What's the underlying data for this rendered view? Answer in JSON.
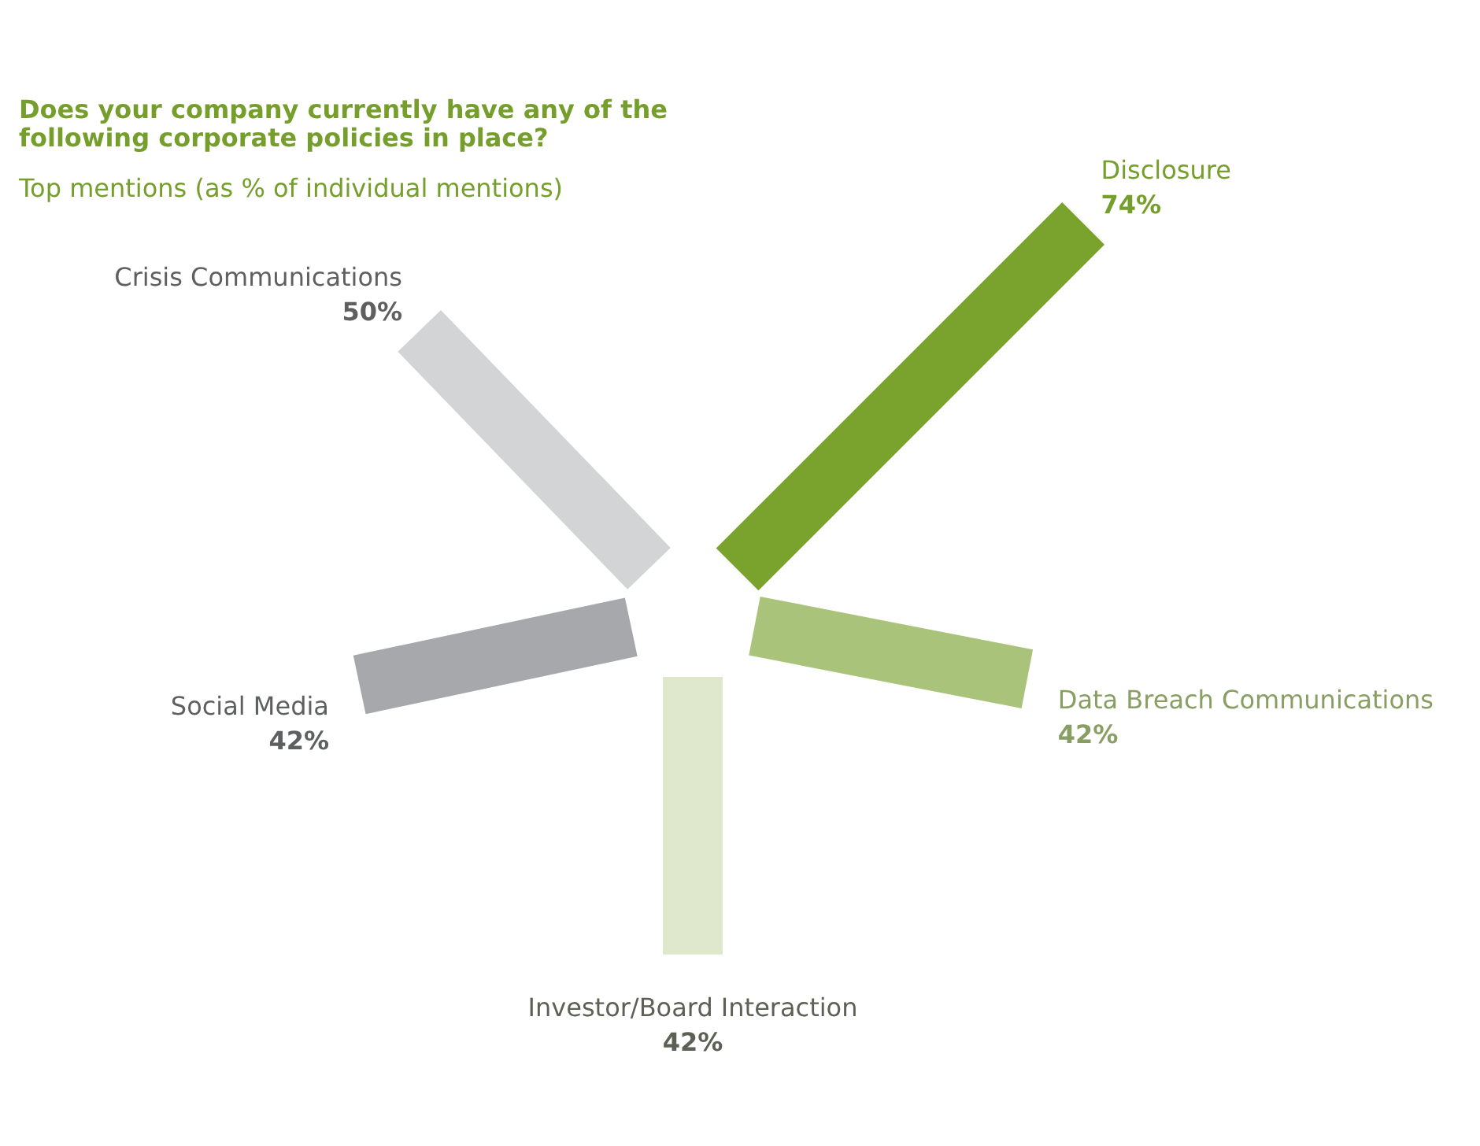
{
  "chart_data": {
    "type": "other",
    "title": "Does your company currently have any of the following corporate policies in place?",
    "subtitle": "Top mentions (as % of individual mentions)",
    "categories": [
      "Disclosure",
      "Data Breach Communications",
      "Investor/Board Interaction",
      "Social Media",
      "Crisis Communications"
    ],
    "values": [
      74,
      42,
      42,
      42,
      50
    ],
    "value_labels": [
      "74%",
      "42%",
      "42%",
      "42%",
      "50%"
    ],
    "colors": [
      "#7aa32e",
      "#a9c47a",
      "#dfe8cc",
      "#a7a8ab",
      "#d3d4d6"
    ]
  }
}
